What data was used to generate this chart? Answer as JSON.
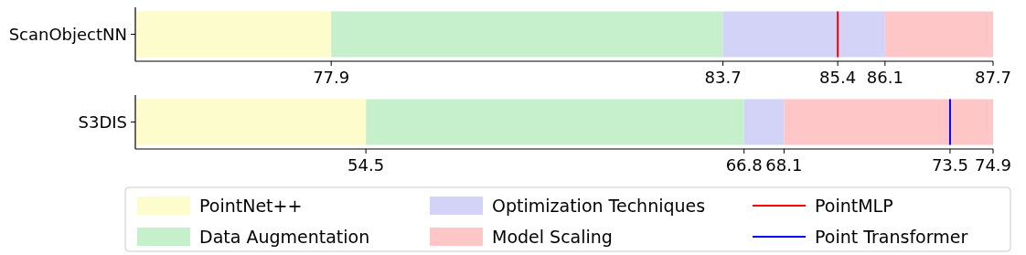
{
  "chart_data": [
    {
      "type": "bar",
      "orientation": "horizontal",
      "categories": [
        "ScanObjectNN"
      ],
      "xlim": [
        75,
        87.7
      ],
      "xticks": [
        77.9,
        83.7,
        85.4,
        86.1,
        87.7
      ],
      "legend": "bottom",
      "series": [
        {
          "name": "PointNet++",
          "color": "#fdfccc",
          "base": [
            75
          ],
          "values": [
            2.9
          ]
        },
        {
          "name": "Data Augmentation",
          "color": "#c6f0cc",
          "base": [
            77.9
          ],
          "values": [
            5.8
          ]
        },
        {
          "name": "Optimization Techniques",
          "color": "#d3d3f8",
          "base": [
            83.7
          ],
          "values": [
            2.4
          ]
        },
        {
          "name": "Model Scaling",
          "color": "#fec6c6",
          "base": [
            86.1
          ],
          "values": [
            1.6
          ]
        }
      ],
      "ref_lines": [
        {
          "axis": "x",
          "value": 85.4,
          "label": "PointMLP",
          "color": "#ff0000"
        }
      ]
    },
    {
      "type": "bar",
      "orientation": "horizontal",
      "categories": [
        "S3DIS"
      ],
      "xlim": [
        47,
        74.9
      ],
      "xticks": [
        54.5,
        66.8,
        68.1,
        73.5,
        74.9
      ],
      "series": [
        {
          "color": "#fdfccc",
          "base": [
            47
          ],
          "values": [
            7.5
          ]
        },
        {
          "color": "#c6f0cc",
          "base": [
            54.5
          ],
          "values": [
            12.3
          ]
        },
        {
          "color": "#d3d3f8",
          "base": [
            66.8
          ],
          "values": [
            1.3
          ]
        },
        {
          "color": "#fec6c6",
          "base": [
            68.1
          ],
          "values": [
            6.8
          ]
        }
      ],
      "ref_lines": [
        {
          "axis": "x",
          "value": 73.5,
          "label": "Point Transformer",
          "color": "#0000ff"
        }
      ]
    }
  ]
}
